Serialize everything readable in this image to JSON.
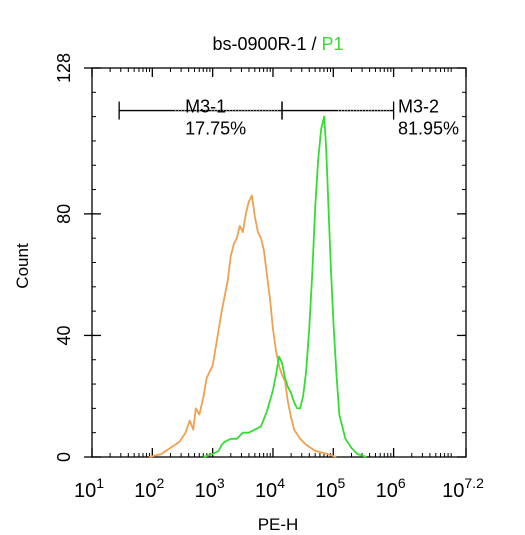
{
  "chart_data": {
    "type": "line",
    "title_prefix": "bs-0900R-1 / ",
    "title_gate": "P1",
    "xlabel": "PE-H",
    "ylabel": "Count",
    "x_scale": "log10",
    "xlim": [
      1,
      7.2
    ],
    "ylim": [
      0,
      128
    ],
    "x_ticks": [
      {
        "base": "10",
        "exp": "1"
      },
      {
        "base": "10",
        "exp": "2"
      },
      {
        "base": "10",
        "exp": "3"
      },
      {
        "base": "10",
        "exp": "4"
      },
      {
        "base": "10",
        "exp": "5"
      },
      {
        "base": "10",
        "exp": "6"
      },
      {
        "base": "10",
        "exp": "7.2"
      }
    ],
    "y_ticks": [
      "0",
      "40",
      "80",
      "128"
    ],
    "colors": {
      "control": "#f0a050",
      "sample": "#33dd33",
      "gate_text": "#33dd33"
    },
    "series": [
      {
        "color_key": "control",
        "points": [
          [
            1.95,
            0
          ],
          [
            2.15,
            1
          ],
          [
            2.3,
            3
          ],
          [
            2.45,
            5
          ],
          [
            2.55,
            8
          ],
          [
            2.62,
            12
          ],
          [
            2.68,
            9
          ],
          [
            2.72,
            16
          ],
          [
            2.78,
            14
          ],
          [
            2.85,
            20
          ],
          [
            2.9,
            26
          ],
          [
            2.95,
            28
          ],
          [
            3.0,
            30
          ],
          [
            3.05,
            36
          ],
          [
            3.1,
            42
          ],
          [
            3.15,
            48
          ],
          [
            3.2,
            53
          ],
          [
            3.25,
            58
          ],
          [
            3.3,
            66
          ],
          [
            3.35,
            70
          ],
          [
            3.4,
            72
          ],
          [
            3.45,
            76
          ],
          [
            3.5,
            74
          ],
          [
            3.55,
            80
          ],
          [
            3.6,
            84
          ],
          [
            3.65,
            86
          ],
          [
            3.7,
            79
          ],
          [
            3.75,
            74
          ],
          [
            3.8,
            72
          ],
          [
            3.85,
            68
          ],
          [
            3.9,
            60
          ],
          [
            3.95,
            52
          ],
          [
            4.0,
            42
          ],
          [
            4.05,
            35
          ],
          [
            4.1,
            30
          ],
          [
            4.15,
            27
          ],
          [
            4.2,
            25
          ],
          [
            4.25,
            18
          ],
          [
            4.3,
            13
          ],
          [
            4.35,
            9
          ],
          [
            4.45,
            6
          ],
          [
            4.55,
            4
          ],
          [
            4.7,
            2
          ],
          [
            4.9,
            1
          ],
          [
            5.05,
            0
          ]
        ]
      },
      {
        "color_key": "sample",
        "points": [
          [
            2.85,
            0
          ],
          [
            3.0,
            1
          ],
          [
            3.1,
            2
          ],
          [
            3.15,
            4
          ],
          [
            3.2,
            5
          ],
          [
            3.3,
            6
          ],
          [
            3.4,
            6
          ],
          [
            3.5,
            8
          ],
          [
            3.6,
            8
          ],
          [
            3.7,
            9
          ],
          [
            3.8,
            10
          ],
          [
            3.9,
            15
          ],
          [
            4.0,
            22
          ],
          [
            4.05,
            27
          ],
          [
            4.1,
            33
          ],
          [
            4.15,
            31
          ],
          [
            4.2,
            26
          ],
          [
            4.25,
            23
          ],
          [
            4.3,
            21
          ],
          [
            4.35,
            18
          ],
          [
            4.4,
            16
          ],
          [
            4.45,
            16
          ],
          [
            4.5,
            20
          ],
          [
            4.55,
            28
          ],
          [
            4.6,
            42
          ],
          [
            4.65,
            60
          ],
          [
            4.7,
            82
          ],
          [
            4.75,
            98
          ],
          [
            4.8,
            108
          ],
          [
            4.85,
            112
          ],
          [
            4.88,
            102
          ],
          [
            4.92,
            82
          ],
          [
            4.96,
            62
          ],
          [
            5.0,
            45
          ],
          [
            5.05,
            28
          ],
          [
            5.1,
            14
          ],
          [
            5.2,
            6
          ],
          [
            5.3,
            3
          ],
          [
            5.4,
            1
          ],
          [
            5.55,
            0
          ]
        ]
      }
    ],
    "markers": [
      {
        "name": "M3-1",
        "percent": "17.75%",
        "x_start": 1.45,
        "x_end": 4.15
      },
      {
        "name": "M3-2",
        "percent": "81.95%",
        "x_start": 4.15,
        "x_end": 6.0
      }
    ],
    "marker_y": 114
  }
}
